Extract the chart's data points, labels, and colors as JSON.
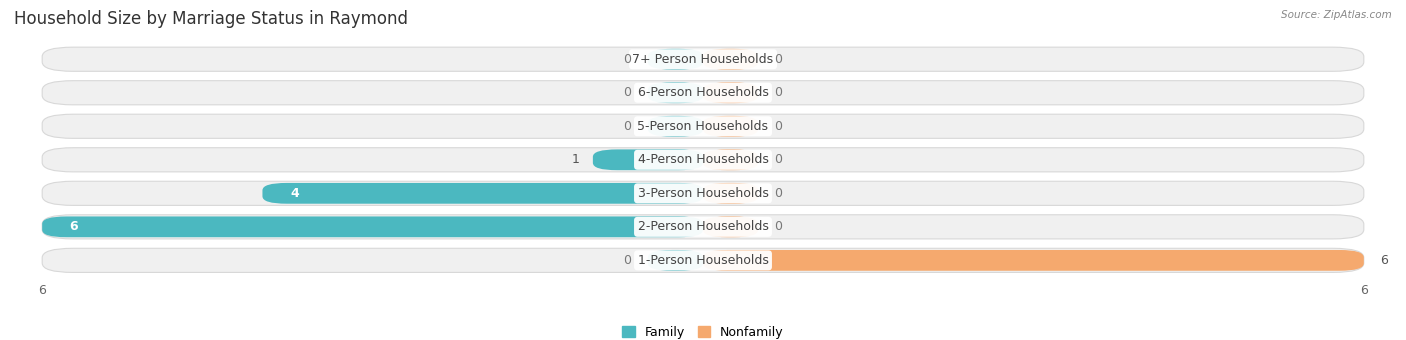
{
  "title": "Household Size by Marriage Status in Raymond",
  "source": "Source: ZipAtlas.com",
  "categories": [
    "7+ Person Households",
    "6-Person Households",
    "5-Person Households",
    "4-Person Households",
    "3-Person Households",
    "2-Person Households",
    "1-Person Households"
  ],
  "family": [
    0,
    0,
    0,
    1,
    4,
    6,
    0
  ],
  "nonfamily": [
    0,
    0,
    0,
    0,
    0,
    0,
    6
  ],
  "family_color": "#4BB8C0",
  "nonfamily_color": "#F5A96E",
  "xlim": 6,
  "row_bg_color": "#f0f0f0",
  "row_bg_edge": "#e0e0e0",
  "title_fontsize": 12,
  "label_fontsize": 9,
  "tick_fontsize": 9,
  "min_stub": 0.5
}
